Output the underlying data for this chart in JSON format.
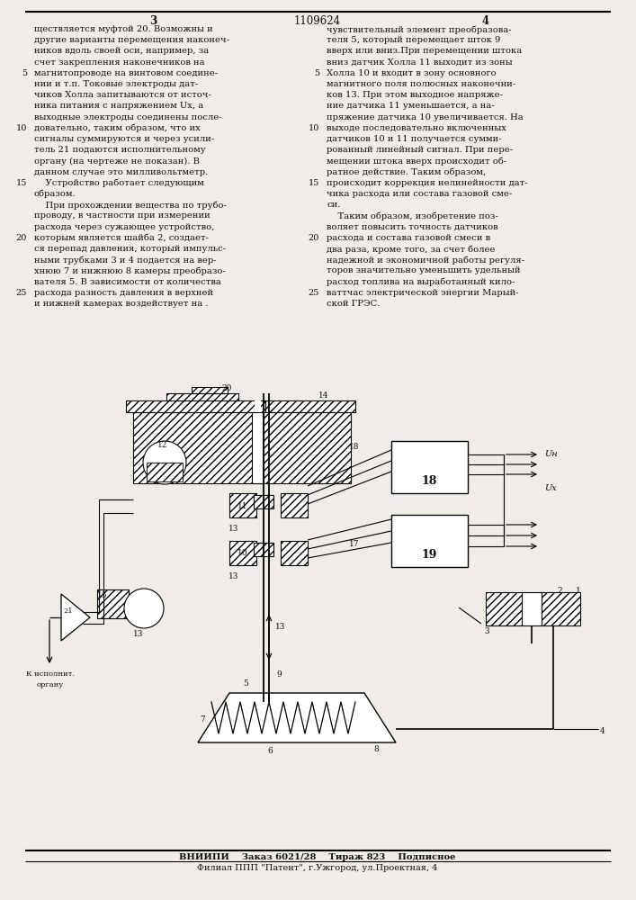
{
  "page_width": 7.07,
  "page_height": 10.0,
  "bg_color": "#f0ede8",
  "text_color": "#111111",
  "title_number": "1109624",
  "col_left": "3",
  "col_right": "4",
  "left_text": [
    "ществляется муфтой 20. Возможны и",
    "другие варианты перемещения наконеч-",
    "ников вдоль своей оси, например, за",
    "счет закрепления наконечников на",
    "магнитопроводе на винтовом соедине-",
    "нии и т.п. Токовые электроды дат-",
    "чиков Холла запитываются от источ-",
    "ника питания с напряжением Ux, а",
    "выходные электроды соединены после-",
    "довательно, таким образом, что их",
    "сигналы суммируются и через усили-",
    "тель 21 подаются исполнительному",
    "органу (на чертеже не показан). В",
    "данном случае это милливольтметр.",
    "    Устройство работает следующим",
    "образом.",
    "    При прохождении вещества по трубо-",
    "проводу, в частности при измерении",
    "расхода через сужающее устройство,",
    "которым является шайба 2, создает-",
    "ся перепад давления, который импульс-",
    "ными трубками 3 и 4 подается на вер-",
    "хнюю 7 и нижнюю 8 камеры преобразо-",
    "вателя 5. В зависимости от количества",
    "расхода разность давления в верхней",
    "и нижней камерах воздействует на ."
  ],
  "right_text": [
    "чувствительный элемент преобразова-",
    "теля 5, который перемещает шток 9",
    "вверх или вниз.При перемещении штока",
    "вниз датчик Холла 11 выходит из зоны",
    "Холла 10 и входит в зону основного",
    "магнитного поля полюсных наконечни-",
    "ков 13. При этом выходное напряже-",
    "ние датчика 11 уменьшается, а на-",
    "пряжение датчика 10 увеличивается. На",
    "выходе последовательно включенных",
    "датчиков 10 и 11 получается сумми-",
    "рованный линейный сигнал. При пере-",
    "мещении штока вверх происходит об-",
    "ратное действие. Таким образом,",
    "происходит коррекция нелинейности дат-",
    "чика расхода или состава газовой сме-",
    "си.",
    "    Таким образом, изобретение поз-",
    "воляет повысить точность датчиков",
    "расхода и состава газовой смеси в",
    "два раза, кроме того, за счет более",
    "надежной и экономичной работы регуля-",
    "торов значительно уменьшить удельный",
    "расход топлива на выработанный кило-",
    "ваттчас электрической энергии Марый-",
    "ской ГРЭС."
  ],
  "footer_line1": "ВНИИПИ    Заказ 6021/28    Тираж 823    Подписное",
  "footer_line2": "Филиал ППП \"Патент\", г.Ужгород, ул.Проектная, 4"
}
